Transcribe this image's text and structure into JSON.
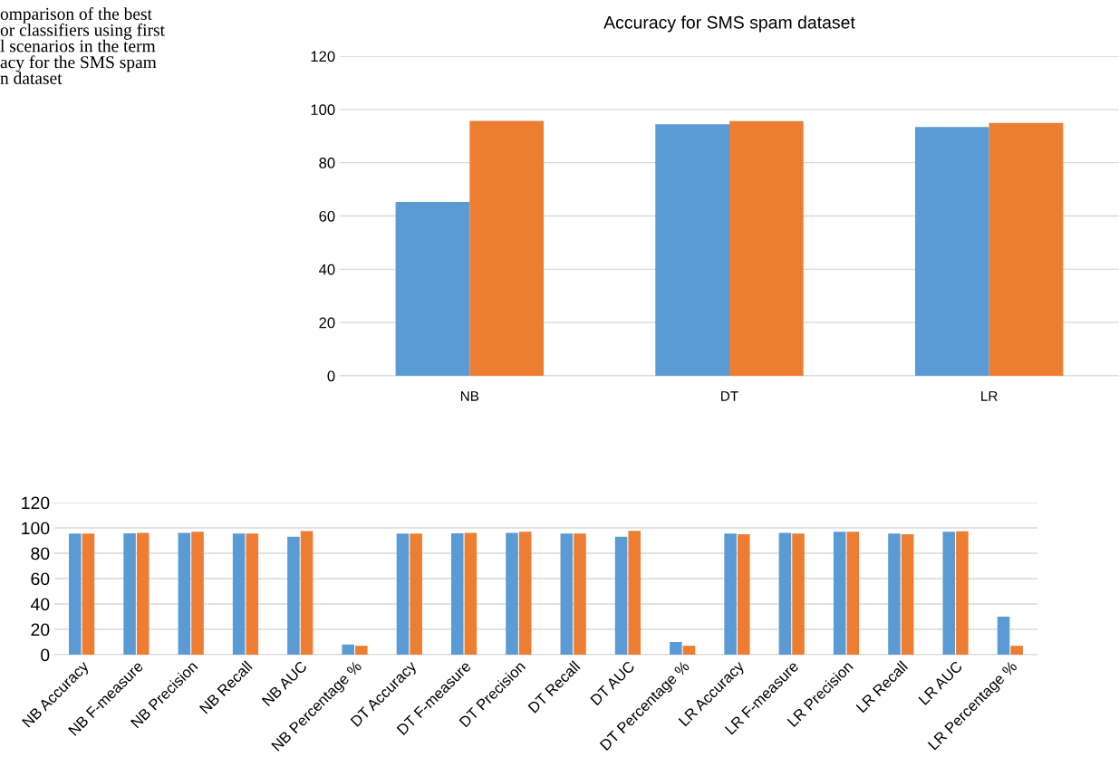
{
  "chart_data": [
    {
      "type": "bar",
      "title": "Accuracy for SMS spam dataset",
      "categories": [
        "NB",
        "DT",
        "LR"
      ],
      "series": [
        {
          "color": "#5b9bd5",
          "values": [
            65.3,
            94.4,
            93.4
          ]
        },
        {
          "color": "#ed7d31",
          "values": [
            95.7,
            95.6,
            94.9
          ]
        }
      ],
      "ylim": [
        0,
        120
      ],
      "yticks": [
        0,
        20,
        40,
        60,
        80,
        100,
        120
      ],
      "grid": "y",
      "legend": false,
      "annotations": [
        "omparison of the best\nor classifiers using first\nl scenarios in the term\nacy for the SMS spam\nn dataset"
      ]
    },
    {
      "type": "bar",
      "categories": [
        "NB Accuracy",
        "NB F-measure",
        "NB Precision",
        "NB Recall",
        "NB AUC",
        "NB Percentage %",
        "DT Accuracy",
        "DT F-measure",
        "DT Precision",
        "DT Recall",
        "DT AUC",
        "DT Percentage %",
        "LR Accuracy",
        "LR F-measure",
        "LR Precision",
        "LR Recall",
        "LR AUC",
        "LR Percentage %"
      ],
      "series": [
        {
          "color": "#5b9bd5",
          "values": [
            95.5,
            95.7,
            96,
            95.5,
            93,
            8,
            95.5,
            95.7,
            96,
            95.5,
            93,
            10,
            95.5,
            96,
            97,
            95.5,
            97,
            30
          ]
        },
        {
          "color": "#ed7d31",
          "values": [
            95.5,
            96,
            97,
            95.5,
            97.5,
            7,
            95.5,
            96,
            97,
            95.5,
            97.7,
            7,
            95,
            95.5,
            97,
            95,
            97.3,
            7
          ]
        }
      ],
      "ylim": [
        0,
        120
      ],
      "yticks": [
        0,
        20,
        40,
        60,
        80,
        100,
        120
      ],
      "grid": "y",
      "legend": false
    }
  ]
}
